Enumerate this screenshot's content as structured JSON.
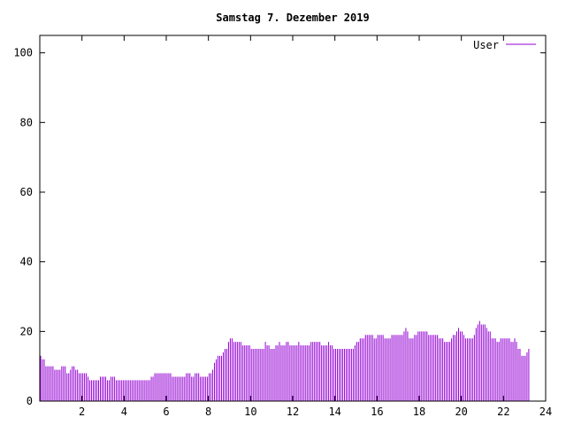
{
  "chart_data": {
    "type": "bar",
    "title": "Samstag 7. Dezember 2019",
    "xlabel": "",
    "ylabel": "",
    "xlim": [
      0,
      24
    ],
    "ylim": [
      0,
      105
    ],
    "x_ticks": [
      2,
      4,
      6,
      8,
      10,
      12,
      14,
      16,
      18,
      20,
      22,
      24
    ],
    "y_ticks": [
      0,
      20,
      40,
      60,
      80,
      100
    ],
    "grid": false,
    "legend_position": "top-right",
    "series": [
      {
        "name": "User",
        "color": "#9400d3",
        "bin_hours": 0.0833,
        "values": [
          13,
          12,
          12,
          10,
          10,
          10,
          10,
          10,
          9,
          9,
          9,
          9,
          10,
          10,
          10,
          8,
          8,
          9,
          10,
          10,
          9,
          9,
          8,
          8,
          8,
          8,
          8,
          7,
          6,
          6,
          6,
          6,
          6,
          6,
          7,
          7,
          7,
          7,
          6,
          6,
          7,
          7,
          7,
          6,
          6,
          6,
          6,
          6,
          6,
          6,
          6,
          6,
          6,
          6,
          6,
          6,
          6,
          6,
          6,
          6,
          6,
          6,
          6,
          7,
          7,
          8,
          8,
          8,
          8,
          8,
          8,
          8,
          8,
          8,
          8,
          7,
          7,
          7,
          7,
          7,
          7,
          7,
          7,
          8,
          8,
          8,
          7,
          7,
          8,
          8,
          8,
          7,
          7,
          7,
          7,
          7,
          8,
          8,
          9,
          11,
          12,
          13,
          13,
          13,
          14,
          15,
          15,
          17,
          18,
          18,
          17,
          17,
          17,
          17,
          17,
          16,
          16,
          16,
          16,
          16,
          15,
          15,
          15,
          15,
          15,
          15,
          15,
          15,
          17,
          16,
          16,
          15,
          15,
          15,
          16,
          16,
          17,
          16,
          16,
          16,
          17,
          17,
          16,
          16,
          16,
          16,
          16,
          17,
          16,
          16,
          16,
          16,
          16,
          16,
          17,
          17,
          17,
          17,
          17,
          17,
          16,
          16,
          16,
          16,
          17,
          16,
          16,
          15,
          15,
          15,
          15,
          15,
          15,
          15,
          15,
          15,
          15,
          15,
          15,
          16,
          17,
          17,
          18,
          18,
          18,
          19,
          19,
          19,
          19,
          19,
          18,
          18,
          19,
          19,
          19,
          19,
          18,
          18,
          18,
          18,
          19,
          19,
          19,
          19,
          19,
          19,
          19,
          20,
          21,
          20,
          18,
          18,
          18,
          19,
          19,
          20,
          20,
          20,
          20,
          20,
          20,
          19,
          19,
          19,
          19,
          19,
          19,
          18,
          18,
          18,
          17,
          17,
          17,
          17,
          18,
          19,
          19,
          20,
          21,
          20,
          20,
          19,
          18,
          18,
          18,
          18,
          18,
          19,
          21,
          22,
          23,
          22,
          22,
          22,
          21,
          20,
          20,
          18,
          18,
          18,
          17,
          17,
          18,
          18,
          18,
          18,
          18,
          18,
          17,
          17,
          18,
          17,
          15,
          15,
          13,
          13,
          13,
          14,
          15
        ]
      }
    ]
  }
}
